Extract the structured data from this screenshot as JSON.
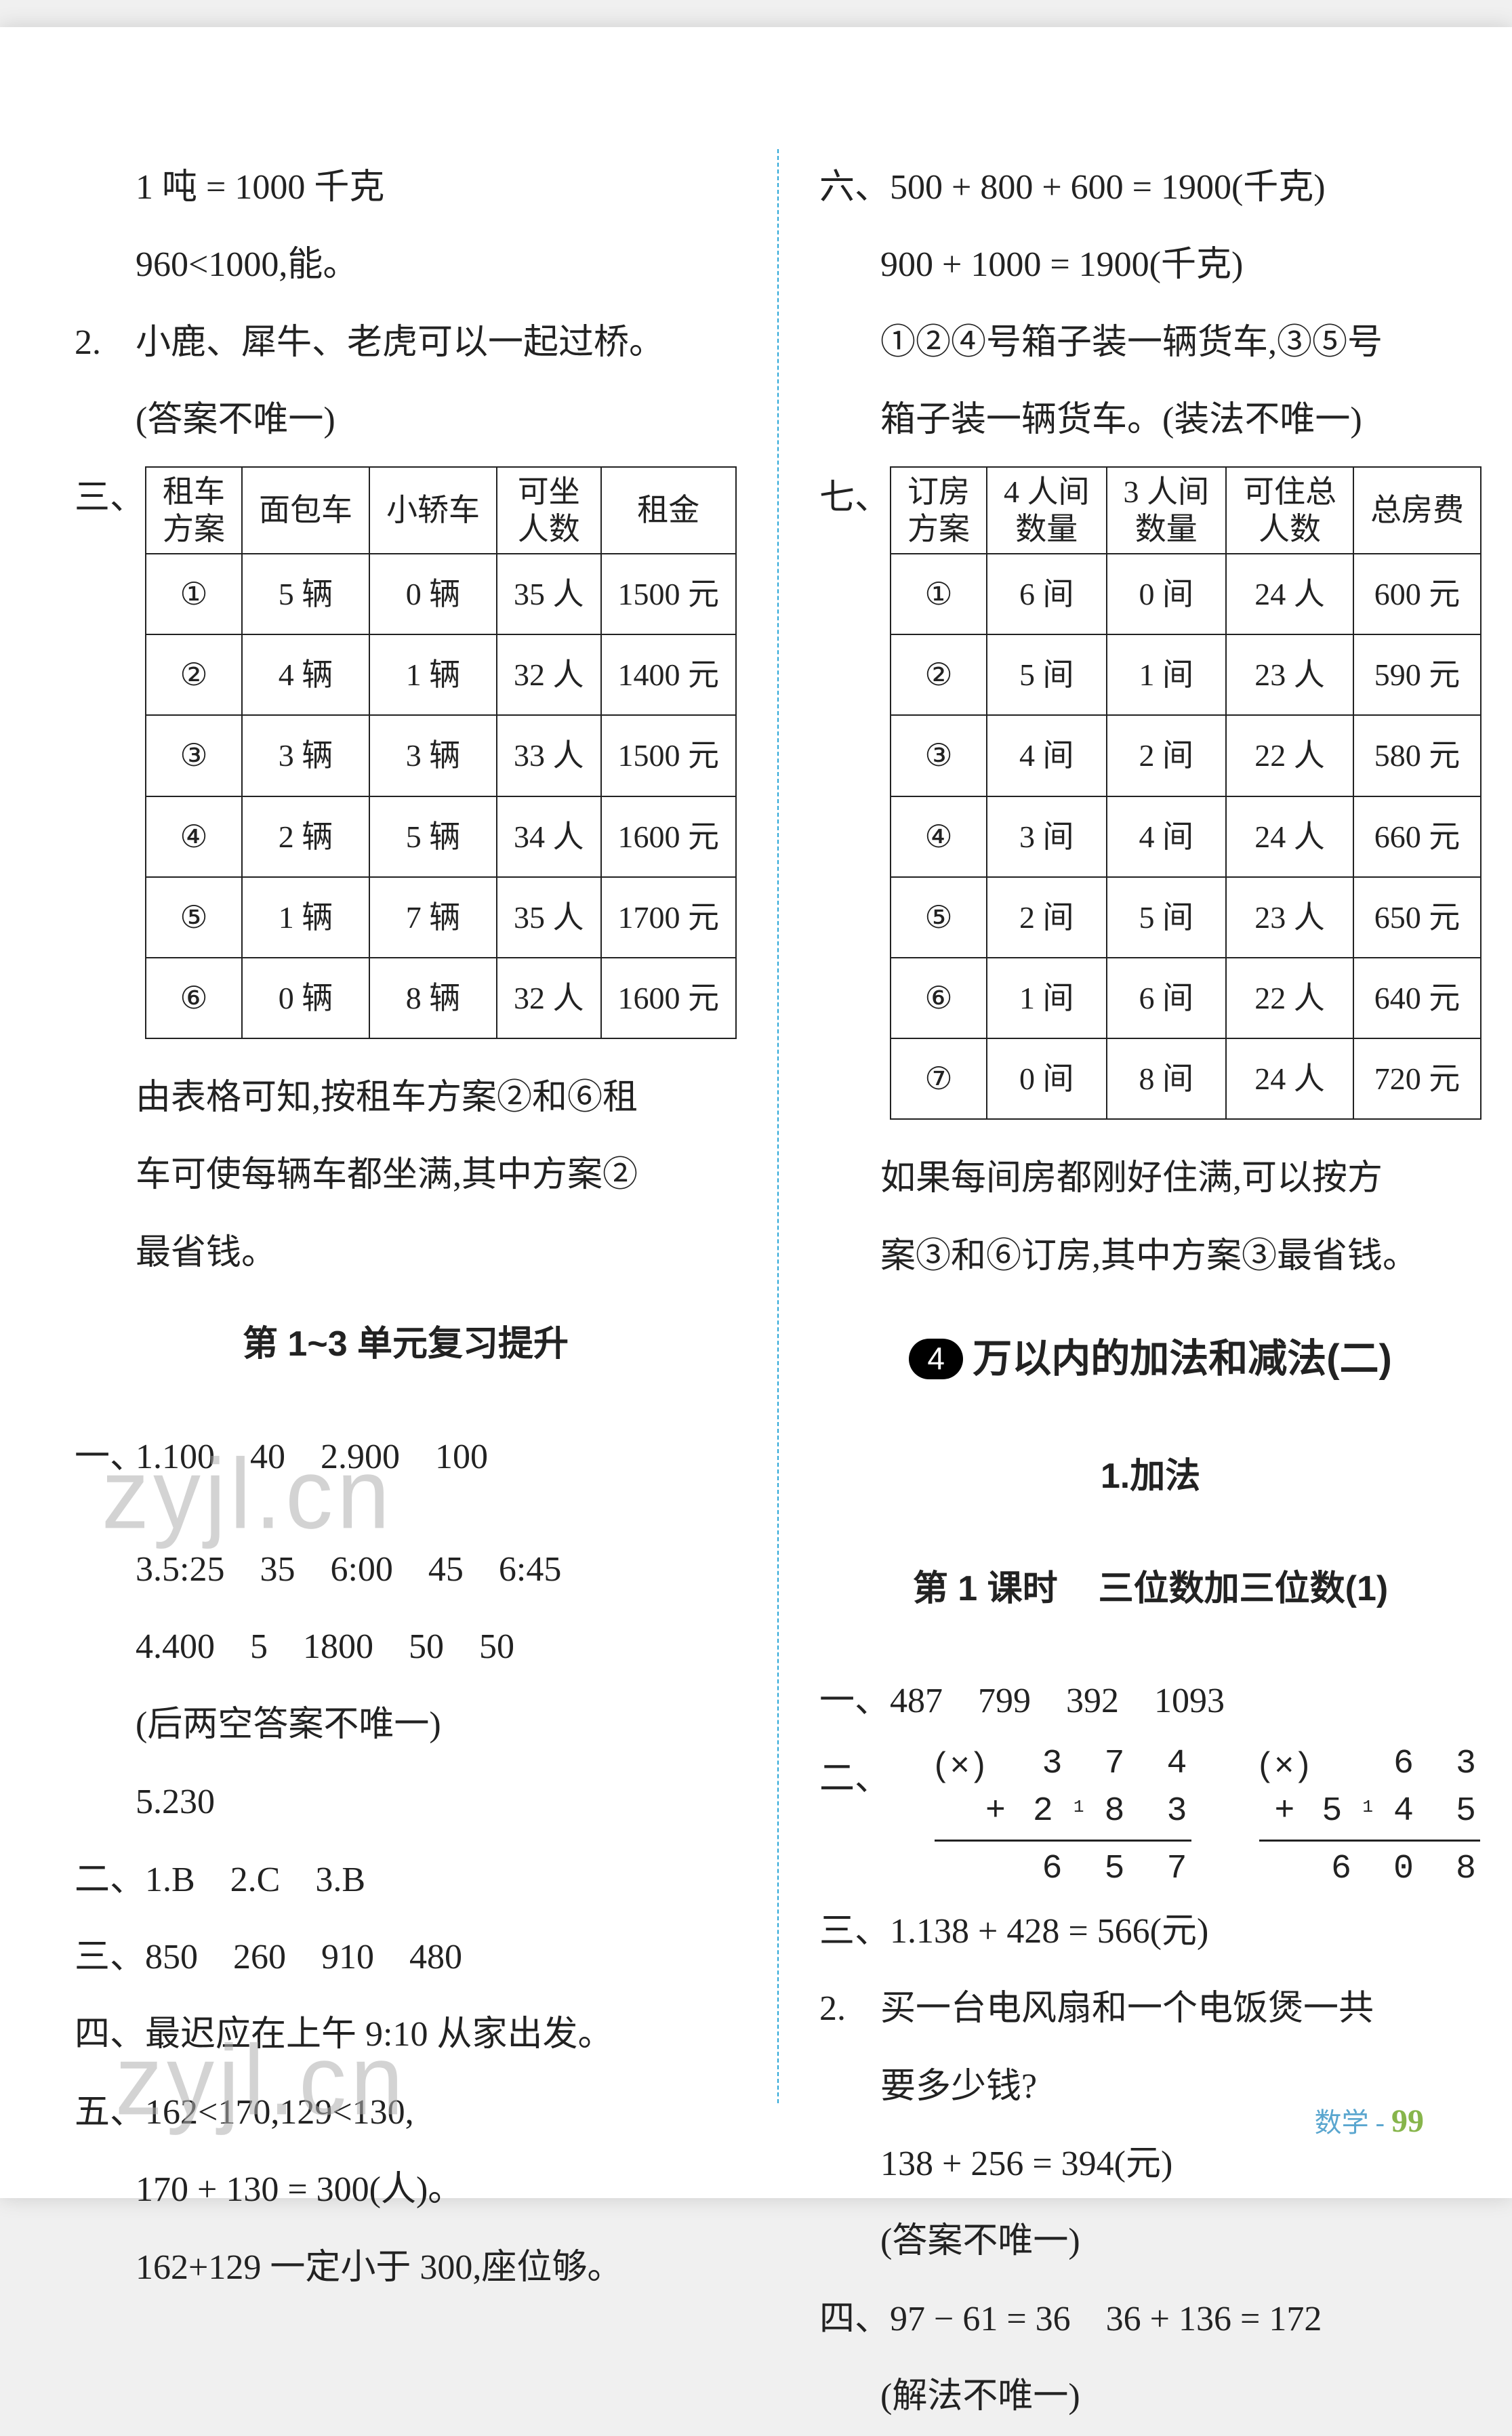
{
  "left": {
    "l1": "1 吨 = 1000 千克",
    "l2": "960<1000,能。",
    "l3_marker": "2.",
    "l3": "小鹿、犀牛、老虎可以一起过桥。",
    "l4": "(答案不唯一)",
    "sec3_marker": "三、",
    "table3": {
      "headers": [
        "租车\n方案",
        "面包车",
        "小轿车",
        "可坐\n人数",
        "租金"
      ],
      "rows": [
        [
          "①",
          "5 辆",
          "0 辆",
          "35 人",
          "1500 元"
        ],
        [
          "②",
          "4 辆",
          "1 辆",
          "32 人",
          "1400 元"
        ],
        [
          "③",
          "3 辆",
          "3 辆",
          "33 人",
          "1500 元"
        ],
        [
          "④",
          "2 辆",
          "5 辆",
          "34 人",
          "1600 元"
        ],
        [
          "⑤",
          "1 辆",
          "7 辆",
          "35 人",
          "1700 元"
        ],
        [
          "⑥",
          "0 辆",
          "8 辆",
          "32 人",
          "1600 元"
        ]
      ]
    },
    "after_t1_a": "由表格可知,按租车方案②和⑥租",
    "after_t1_b": "车可使每辆车都坐满,其中方案②",
    "after_t1_c": "最省钱。",
    "review_title": "第 1~3 单元复习提升",
    "one_marker": "一、",
    "one_a": "1.100　40　2.900　100",
    "one_b": "3.5:25　35　6:00　45　6:45",
    "one_c": "4.400　5　1800　50　50",
    "one_d": "(后两空答案不唯一)",
    "one_e": "5.230",
    "two": "二、1.B　2.C　3.B",
    "three": "三、850　260　910　480",
    "four": "四、最迟应在上午 9:10 从家出发。",
    "five_a": "五、162<170,129<130,",
    "five_b": "170 + 130 = 300(人)。",
    "five_c": "162+129 一定小于 300,座位够。"
  },
  "right": {
    "six_a": "六、500 + 800 + 600 = 1900(千克)",
    "six_b": "900 + 1000 = 1900(千克)",
    "six_c": "①②④号箱子装一辆货车,③⑤号",
    "six_d": "箱子装一辆货车。(装法不唯一)",
    "seven_marker": "七、",
    "table7": {
      "headers": [
        "订房\n方案",
        "4 人间\n数量",
        "3 人间\n数量",
        "可住总\n人数",
        "总房费"
      ],
      "rows": [
        [
          "①",
          "6 间",
          "0 间",
          "24 人",
          "600 元"
        ],
        [
          "②",
          "5 间",
          "1 间",
          "23 人",
          "590 元"
        ],
        [
          "③",
          "4 间",
          "2 间",
          "22 人",
          "580 元"
        ],
        [
          "④",
          "3 间",
          "4 间",
          "24 人",
          "660 元"
        ],
        [
          "⑤",
          "2 间",
          "5 间",
          "23 人",
          "650 元"
        ],
        [
          "⑥",
          "1 间",
          "6 间",
          "22 人",
          "640 元"
        ],
        [
          "⑦",
          "0 间",
          "8 间",
          "24 人",
          "720 元"
        ]
      ]
    },
    "after_t7_a": "如果每间房都刚好住满,可以按方",
    "after_t7_b": "案③和⑥订房,其中方案③最省钱。",
    "unit_num": "4",
    "unit_title": "万以内的加法和减法(二)",
    "sub_title": "1.加法",
    "lesson_left": "第 1 课时",
    "lesson_right": "三位数加三位数(1)",
    "r_one": "一、487　799　392　1093",
    "r_two_marker": "二、",
    "arith1": {
      "mark": "(×)",
      "top": "3　7　4",
      "bot_plus": "+",
      "bot": "2",
      "sub": "1",
      "bot2": "8　3",
      "res": "6　5　7"
    },
    "arith2": {
      "mark": "(×)",
      "topgap": "　",
      "top": "6　3",
      "bot_plus": "+",
      "bot": "5",
      "sub": "1",
      "bot2": "4　5",
      "res": "6　0　8"
    },
    "r_three_a": "三、1.138 + 428 = 566(元)",
    "r_three_b_marker": "2.",
    "r_three_b": "买一台电风扇和一个电饭煲一共",
    "r_three_c": "要多少钱?",
    "r_three_d": "138 + 256 = 394(元)",
    "r_three_e": "(答案不唯一)",
    "r_four": "四、97 − 61 = 36　36 + 136 = 172",
    "r_four_b": "(解法不唯一)"
  },
  "watermark": "zyjl.cn",
  "footer_subject": "数学",
  "footer_page": "99",
  "colors": {
    "accent_blue": "#2aa6d7",
    "page_green": "#87b54b",
    "text": "#222222",
    "watermark": "#b0b0b0"
  }
}
